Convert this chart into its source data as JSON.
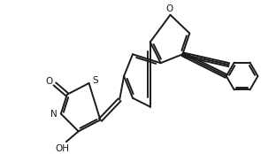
{
  "bg_color": "#ffffff",
  "line_color": "#1a1a1a",
  "line_width": 1.4,
  "figsize": [
    2.95,
    1.74
  ],
  "dpi": 100,
  "label_S": "S",
  "label_N": "N",
  "label_O1": "O",
  "label_O2": "O",
  "label_O3": "O",
  "label_OH": "OH"
}
